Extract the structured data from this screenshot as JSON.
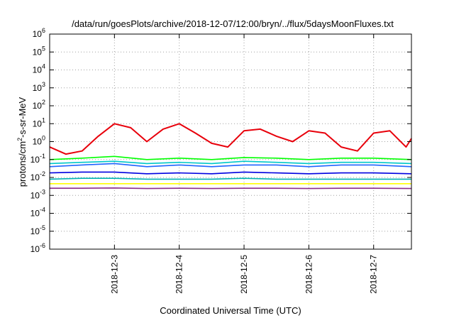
{
  "chart_data": {
    "type": "line",
    "title": "/data/run/goesPlots/archive/2018-12-07/12:00/bryn/../flux/5daysMoonFluxes.txt",
    "xlabel": "Coordinated Universal Time (UTC)",
    "ylabel_parts": {
      "pre": "protons/cm",
      "sup": "2",
      "post": "-s-sr-MeV"
    },
    "yscale": "log",
    "ylim_exponents": [
      -6,
      6
    ],
    "y_ticks": [
      {
        "base": "10",
        "exp": "-6"
      },
      {
        "base": "10",
        "exp": "-5"
      },
      {
        "base": "10",
        "exp": "-4"
      },
      {
        "base": "10",
        "exp": "-3"
      },
      {
        "base": "10",
        "exp": "-2"
      },
      {
        "base": "10",
        "exp": "-1"
      },
      {
        "base": "10",
        "exp": "0"
      },
      {
        "base": "10",
        "exp": "1"
      },
      {
        "base": "10",
        "exp": "2"
      },
      {
        "base": "10",
        "exp": "3"
      },
      {
        "base": "10",
        "exp": "4"
      },
      {
        "base": "10",
        "exp": "5"
      },
      {
        "base": "10",
        "exp": "6"
      }
    ],
    "x_range": [
      "2018-12-02 00:00",
      "2018-12-07 14:00"
    ],
    "x_ticks": [
      "2018-12-3",
      "2018-12-4",
      "2018-12-5",
      "2018-12-6",
      "2018-12-7"
    ],
    "grid": true,
    "series": [
      {
        "color": "#e8000b",
        "x": [
          "2018-12-02 00:00",
          "2018-12-02 06:00",
          "2018-12-02 12:00",
          "2018-12-02 18:00",
          "2018-12-03 00:00",
          "2018-12-03 06:00",
          "2018-12-03 12:00",
          "2018-12-03 18:00",
          "2018-12-04 00:00",
          "2018-12-04 06:00",
          "2018-12-04 12:00",
          "2018-12-04 18:00",
          "2018-12-05 00:00",
          "2018-12-05 06:00",
          "2018-12-05 12:00",
          "2018-12-05 18:00",
          "2018-12-06 00:00",
          "2018-12-06 06:00",
          "2018-12-06 12:00",
          "2018-12-06 18:00",
          "2018-12-07 00:00",
          "2018-12-07 06:00",
          "2018-12-07 12:00",
          "2018-12-07 14:00"
        ],
        "values": [
          0.5,
          0.2,
          0.3,
          2,
          10,
          6,
          1,
          5,
          10,
          3,
          0.8,
          0.5,
          4,
          5,
          2,
          1,
          4,
          3,
          0.5,
          0.3,
          3,
          4,
          0.5,
          1.5
        ]
      },
      {
        "color": "#00ff00",
        "x": [
          "2018-12-02 00:00",
          "2018-12-02 12:00",
          "2018-12-03 00:00",
          "2018-12-03 12:00",
          "2018-12-04 00:00",
          "2018-12-04 12:00",
          "2018-12-05 00:00",
          "2018-12-05 12:00",
          "2018-12-06 00:00",
          "2018-12-06 12:00",
          "2018-12-07 00:00",
          "2018-12-07 14:00"
        ],
        "values": [
          0.1,
          0.12,
          0.15,
          0.1,
          0.12,
          0.1,
          0.13,
          0.12,
          0.1,
          0.12,
          0.12,
          0.1
        ]
      },
      {
        "color": "#00c8c8",
        "x": [
          "2018-12-02 00:00",
          "2018-12-02 12:00",
          "2018-12-03 00:00",
          "2018-12-03 12:00",
          "2018-12-04 00:00",
          "2018-12-04 12:00",
          "2018-12-05 00:00",
          "2018-12-05 12:00",
          "2018-12-06 00:00",
          "2018-12-06 12:00",
          "2018-12-07 00:00",
          "2018-12-07 14:00"
        ],
        "values": [
          0.06,
          0.07,
          0.08,
          0.06,
          0.07,
          0.06,
          0.08,
          0.07,
          0.06,
          0.07,
          0.07,
          0.06
        ]
      },
      {
        "color": "#1e64ff",
        "x": [
          "2018-12-02 00:00",
          "2018-12-02 12:00",
          "2018-12-03 00:00",
          "2018-12-03 12:00",
          "2018-12-04 00:00",
          "2018-12-04 12:00",
          "2018-12-05 00:00",
          "2018-12-05 12:00",
          "2018-12-06 00:00",
          "2018-12-06 12:00",
          "2018-12-07 00:00",
          "2018-12-07 14:00"
        ],
        "values": [
          0.04,
          0.05,
          0.06,
          0.04,
          0.05,
          0.04,
          0.05,
          0.05,
          0.04,
          0.05,
          0.05,
          0.04
        ]
      },
      {
        "color": "#0000e0",
        "x": [
          "2018-12-02 00:00",
          "2018-12-02 12:00",
          "2018-12-03 00:00",
          "2018-12-03 12:00",
          "2018-12-04 00:00",
          "2018-12-04 12:00",
          "2018-12-05 00:00",
          "2018-12-05 12:00",
          "2018-12-06 00:00",
          "2018-12-06 12:00",
          "2018-12-07 00:00",
          "2018-12-07 14:00"
        ],
        "values": [
          0.018,
          0.02,
          0.02,
          0.016,
          0.018,
          0.016,
          0.02,
          0.018,
          0.016,
          0.018,
          0.018,
          0.016
        ]
      },
      {
        "color": "#00b4b4",
        "x": [
          "2018-12-02 00:00",
          "2018-12-02 12:00",
          "2018-12-03 00:00",
          "2018-12-03 12:00",
          "2018-12-04 00:00",
          "2018-12-04 12:00",
          "2018-12-05 00:00",
          "2018-12-05 12:00",
          "2018-12-06 00:00",
          "2018-12-06 12:00",
          "2018-12-07 00:00",
          "2018-12-07 14:00"
        ],
        "values": [
          0.008,
          0.009,
          0.009,
          0.008,
          0.008,
          0.008,
          0.009,
          0.008,
          0.008,
          0.008,
          0.008,
          0.008
        ]
      },
      {
        "color": "#ffff00",
        "x": [
          "2018-12-02 00:00",
          "2018-12-03 00:00",
          "2018-12-04 00:00",
          "2018-12-05 00:00",
          "2018-12-06 00:00",
          "2018-12-07 00:00",
          "2018-12-07 14:00"
        ],
        "values": [
          0.0045,
          0.0045,
          0.0045,
          0.0045,
          0.0045,
          0.0045,
          0.0045
        ]
      },
      {
        "color": "#8b2d8b",
        "x": [
          "2018-12-02 00:00",
          "2018-12-02 12:00",
          "2018-12-03 00:00",
          "2018-12-03 12:00",
          "2018-12-04 00:00",
          "2018-12-04 12:00",
          "2018-12-05 00:00",
          "2018-12-05 12:00",
          "2018-12-06 00:00",
          "2018-12-06 12:00",
          "2018-12-07 00:00",
          "2018-12-07 14:00"
        ],
        "values": [
          0.0025,
          0.0025,
          0.0026,
          0.0024,
          0.0025,
          0.0024,
          0.0025,
          0.0025,
          0.0024,
          0.0025,
          0.0025,
          0.0024
        ]
      }
    ]
  }
}
